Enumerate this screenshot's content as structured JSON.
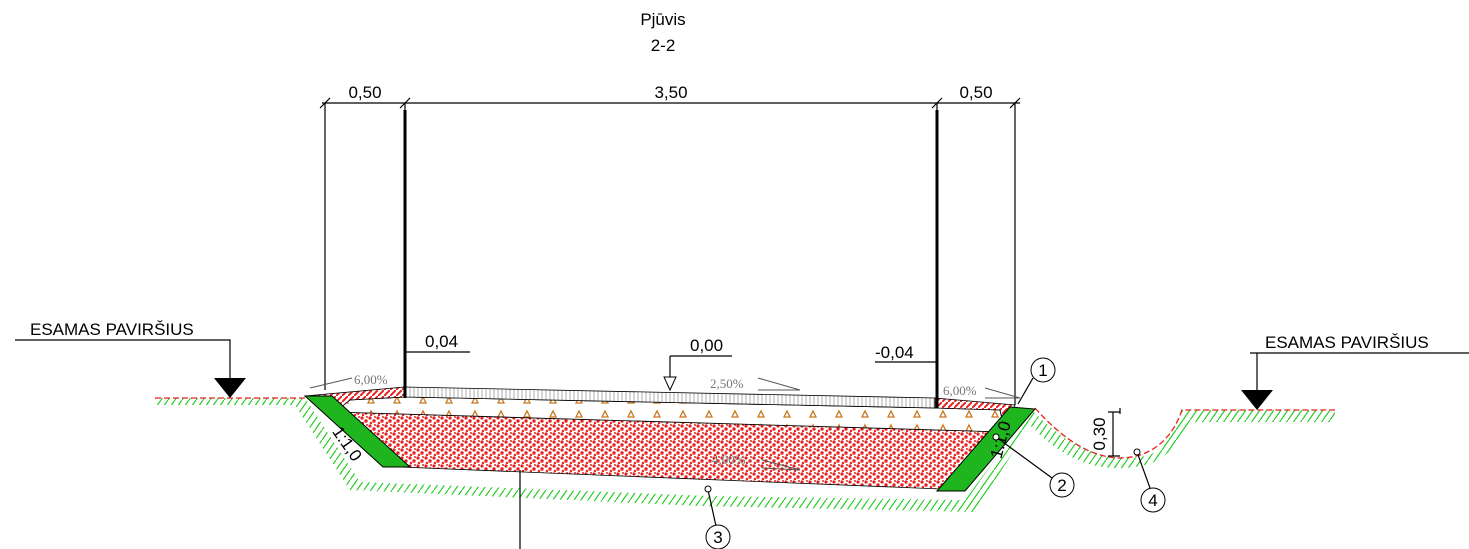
{
  "title": {
    "name": "Pjūvis",
    "section": "2-2"
  },
  "dimensions": [
    "0,50",
    "3,50",
    "0,50"
  ],
  "existing_surface": [
    "ESAMAS PAVIRŠIUS",
    "ESAMAS PAVIRŠIUS"
  ],
  "levels": [
    "0,04",
    "0,00",
    "-0,04"
  ],
  "slopes": [
    "6,00%",
    "2,50%",
    "6,00%",
    "4,00%"
  ],
  "embankment_slopes": [
    "1:1,0",
    "1:1,0"
  ],
  "ditch_depth": "0,30",
  "callouts": [
    "1",
    "2",
    "3",
    "4"
  ]
}
